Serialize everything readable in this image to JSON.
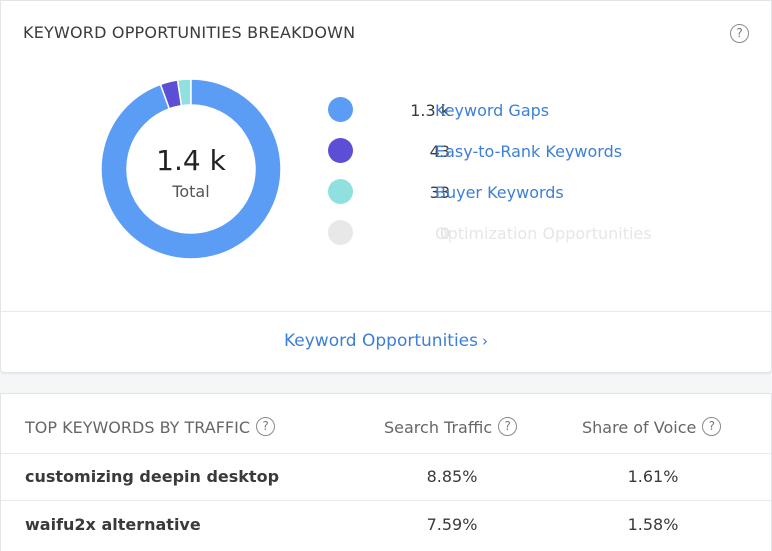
{
  "breakdown": {
    "title": "KEYWORD OPPORTUNITIES BREAKDOWN",
    "help_icon": "?",
    "total_value": "1.4 k",
    "total_label": "Total",
    "colors": {
      "keyword_gaps": "#5b9cf5",
      "easy_to_rank": "#5c4fd6",
      "buyer": "#8fe0df",
      "optimization": "#e6e6e6"
    },
    "chart_data": {
      "type": "pie",
      "categories": [
        "Keyword Gaps",
        "Easy-to-Rank Keywords",
        "Buyer Keywords",
        "Optimization Opportunities"
      ],
      "values": [
        1300,
        43,
        33,
        0
      ]
    },
    "legend": [
      {
        "count": "1.3 k",
        "label": "Keyword Gaps"
      },
      {
        "count": "43",
        "label": "Easy-to-Rank Keywords"
      },
      {
        "count": "33",
        "label": "Buyer Keywords"
      },
      {
        "count": "0",
        "label": "Optimization Opportunities"
      }
    ],
    "footer_link": "Keyword Opportunities",
    "footer_chevron": "›"
  },
  "top_keywords": {
    "header_keyword": "TOP KEYWORDS BY TRAFFIC",
    "header_traffic": "Search Traffic",
    "header_share": "Share of Voice",
    "help_icon": "?",
    "rows": [
      {
        "keyword": "customizing deepin desktop",
        "traffic": "8.85%",
        "share": "1.61%"
      },
      {
        "keyword": "waifu2x alternative",
        "traffic": "7.59%",
        "share": "1.58%"
      }
    ]
  }
}
